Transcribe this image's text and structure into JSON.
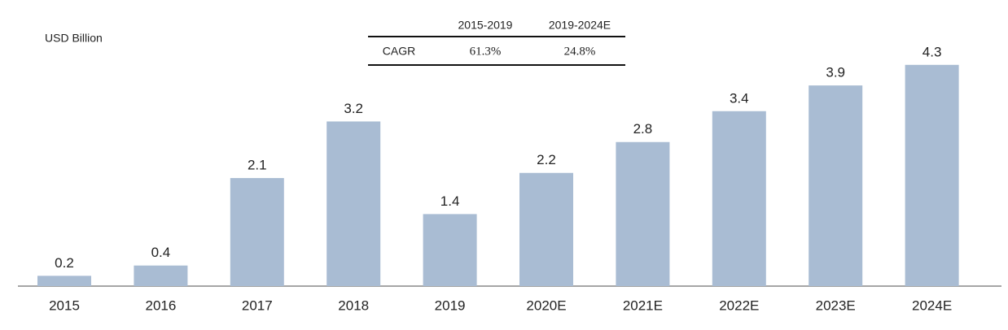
{
  "chart_data": {
    "type": "bar",
    "unit_label": "USD Billion",
    "categories": [
      "2015",
      "2016",
      "2017",
      "2018",
      "2019",
      "2020E",
      "2021E",
      "2022E",
      "2023E",
      "2024E"
    ],
    "values": [
      0.2,
      0.4,
      2.1,
      3.2,
      1.4,
      2.2,
      2.8,
      3.4,
      3.9,
      4.3
    ],
    "color": "#a9bcd3"
  },
  "cagr_table": {
    "columns": [
      "2015-2019",
      "2019-2024E"
    ],
    "rows": [
      {
        "label": "CAGR",
        "values": [
          "61.3%",
          "24.8%"
        ]
      }
    ]
  }
}
